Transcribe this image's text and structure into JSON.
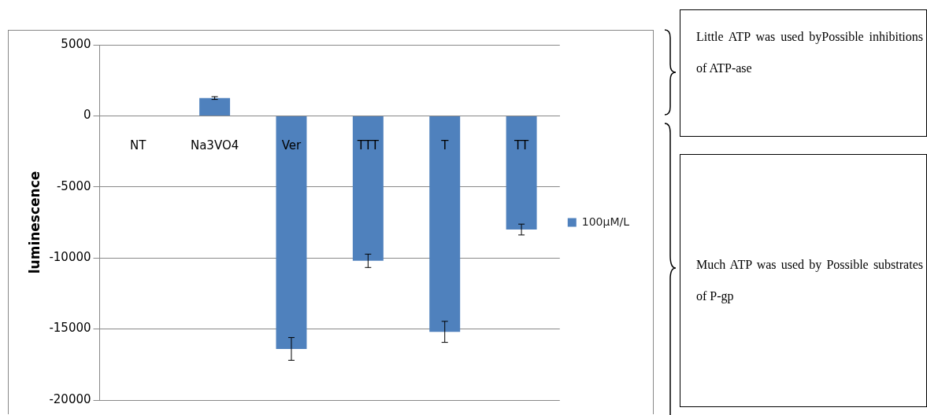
{
  "chart_data": {
    "type": "bar",
    "ylabel": "luminescence",
    "categories": [
      "NT",
      "Na3VO4",
      "Ver",
      "TTT",
      "T",
      "TT"
    ],
    "series": [
      {
        "name": "100μM/L",
        "color": "#4f81bd",
        "values": [
          0,
          1250,
          -16400,
          -10200,
          -15200,
          -8000
        ],
        "errors": [
          null,
          100,
          800,
          470,
          740,
          380
        ]
      }
    ],
    "ylim": [
      -20000,
      5000
    ],
    "yticks": [
      -20000,
      -15000,
      -10000,
      -5000,
      0,
      5000
    ],
    "grid": "y",
    "legend": "right",
    "annotations": [
      "Little ATP was used byPossible inhibitions of ATP-ase",
      "Much ATP was used by Possible substrates of P-gp"
    ]
  }
}
